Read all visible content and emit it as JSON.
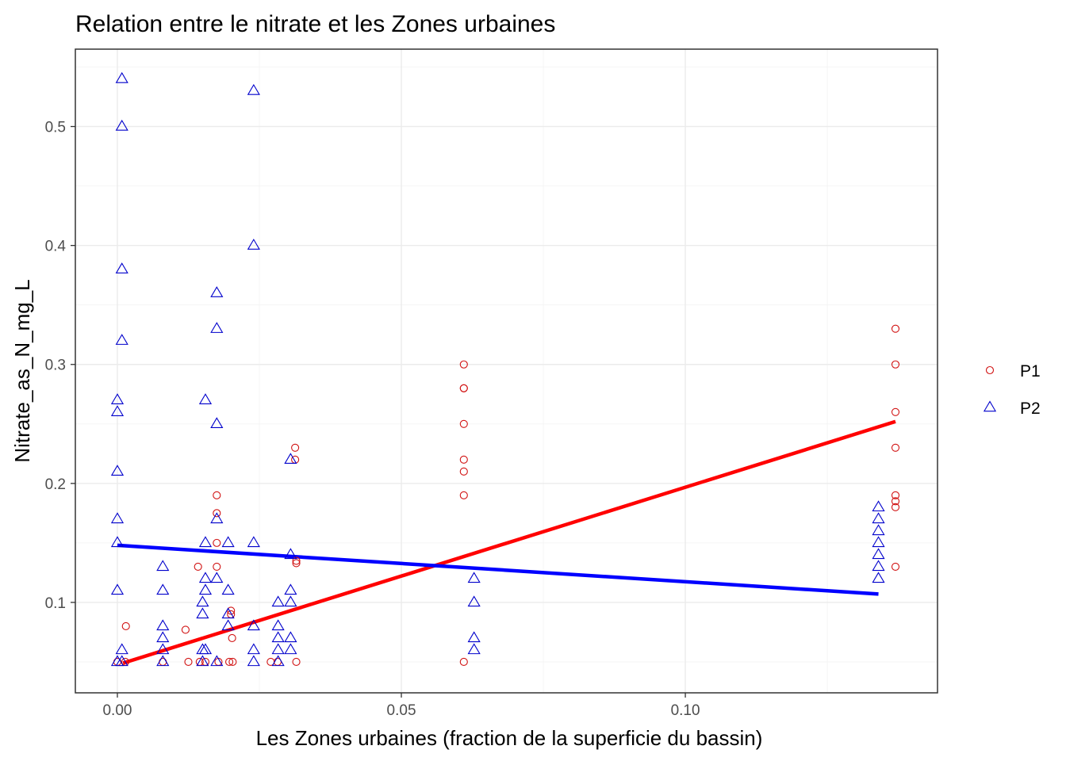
{
  "chart_data": {
    "type": "scatter",
    "title": "Relation entre le nitrate et les Zones urbaines",
    "xlabel": "Les Zones urbaines (fraction de la superficie du bassin)",
    "ylabel": "Nitrate_as_N_mg_L",
    "xlim": [
      -0.0074,
      0.1444
    ],
    "ylim": [
      0.024,
      0.565
    ],
    "x_ticks": [
      0.0,
      0.05,
      0.1
    ],
    "x_tick_labels": [
      "0.00",
      "0.05",
      "0.10"
    ],
    "y_ticks": [
      0.1,
      0.2,
      0.3,
      0.4,
      0.5
    ],
    "y_tick_labels": [
      "0.1",
      "0.2",
      "0.3",
      "0.4",
      "0.5"
    ],
    "grid": true,
    "legend_position": "right",
    "series": [
      {
        "name": "P1",
        "color": "#d11111",
        "marker": "circle",
        "points": [
          [
            0.0,
            0.05
          ],
          [
            0.0014,
            0.05
          ],
          [
            0.0015,
            0.08
          ],
          [
            0.008,
            0.05
          ],
          [
            0.012,
            0.077
          ],
          [
            0.0125,
            0.05
          ],
          [
            0.0142,
            0.13
          ],
          [
            0.0145,
            0.05
          ],
          [
            0.0155,
            0.05
          ],
          [
            0.0175,
            0.19
          ],
          [
            0.0175,
            0.175
          ],
          [
            0.0175,
            0.15
          ],
          [
            0.0175,
            0.13
          ],
          [
            0.0178,
            0.05
          ],
          [
            0.0197,
            0.05
          ],
          [
            0.02,
            0.093
          ],
          [
            0.02,
            0.09
          ],
          [
            0.0202,
            0.07
          ],
          [
            0.0203,
            0.05
          ],
          [
            0.027,
            0.05
          ],
          [
            0.0282,
            0.05
          ],
          [
            0.0313,
            0.23
          ],
          [
            0.0313,
            0.22
          ],
          [
            0.0315,
            0.135
          ],
          [
            0.0315,
            0.133
          ],
          [
            0.0315,
            0.05
          ],
          [
            0.061,
            0.3
          ],
          [
            0.061,
            0.28
          ],
          [
            0.061,
            0.28
          ],
          [
            0.061,
            0.25
          ],
          [
            0.061,
            0.22
          ],
          [
            0.061,
            0.21
          ],
          [
            0.061,
            0.19
          ],
          [
            0.061,
            0.05
          ],
          [
            0.137,
            0.33
          ],
          [
            0.137,
            0.3
          ],
          [
            0.137,
            0.26
          ],
          [
            0.137,
            0.23
          ],
          [
            0.137,
            0.19
          ],
          [
            0.137,
            0.185
          ],
          [
            0.137,
            0.18
          ],
          [
            0.137,
            0.13
          ]
        ],
        "fit": {
          "x": [
            0.001,
            0.137
          ],
          "y": [
            0.049,
            0.252
          ]
        }
      },
      {
        "name": "P2",
        "color": "#0000cc",
        "marker": "triangle",
        "points": [
          [
            0.0008,
            0.54
          ],
          [
            0.0008,
            0.5
          ],
          [
            0.0008,
            0.38
          ],
          [
            0.0008,
            0.32
          ],
          [
            0.0,
            0.27
          ],
          [
            0.0,
            0.26
          ],
          [
            0.0,
            0.21
          ],
          [
            0.0,
            0.17
          ],
          [
            0.0,
            0.15
          ],
          [
            0.0,
            0.11
          ],
          [
            0.0008,
            0.06
          ],
          [
            0.0,
            0.05
          ],
          [
            0.0008,
            0.05
          ],
          [
            0.008,
            0.13
          ],
          [
            0.008,
            0.11
          ],
          [
            0.008,
            0.08
          ],
          [
            0.008,
            0.07
          ],
          [
            0.008,
            0.06
          ],
          [
            0.008,
            0.05
          ],
          [
            0.0155,
            0.27
          ],
          [
            0.0155,
            0.15
          ],
          [
            0.0155,
            0.12
          ],
          [
            0.0155,
            0.11
          ],
          [
            0.015,
            0.1
          ],
          [
            0.015,
            0.09
          ],
          [
            0.015,
            0.06
          ],
          [
            0.0155,
            0.06
          ],
          [
            0.015,
            0.05
          ],
          [
            0.0175,
            0.36
          ],
          [
            0.0175,
            0.33
          ],
          [
            0.0175,
            0.25
          ],
          [
            0.0175,
            0.17
          ],
          [
            0.0175,
            0.12
          ],
          [
            0.0175,
            0.05
          ],
          [
            0.0195,
            0.15
          ],
          [
            0.0195,
            0.11
          ],
          [
            0.0195,
            0.09
          ],
          [
            0.0195,
            0.08
          ],
          [
            0.024,
            0.53
          ],
          [
            0.024,
            0.4
          ],
          [
            0.024,
            0.15
          ],
          [
            0.024,
            0.08
          ],
          [
            0.024,
            0.06
          ],
          [
            0.024,
            0.05
          ],
          [
            0.0283,
            0.1
          ],
          [
            0.0283,
            0.08
          ],
          [
            0.0283,
            0.07
          ],
          [
            0.0283,
            0.06
          ],
          [
            0.0283,
            0.05
          ],
          [
            0.0305,
            0.22
          ],
          [
            0.0305,
            0.14
          ],
          [
            0.0305,
            0.11
          ],
          [
            0.0305,
            0.1
          ],
          [
            0.0305,
            0.07
          ],
          [
            0.0305,
            0.06
          ],
          [
            0.0628,
            0.12
          ],
          [
            0.0628,
            0.1
          ],
          [
            0.0628,
            0.07
          ],
          [
            0.0628,
            0.06
          ],
          [
            0.134,
            0.18
          ],
          [
            0.134,
            0.17
          ],
          [
            0.134,
            0.16
          ],
          [
            0.134,
            0.15
          ],
          [
            0.134,
            0.14
          ],
          [
            0.134,
            0.13
          ],
          [
            0.134,
            0.12
          ]
        ],
        "fit": {
          "x": [
            0.0,
            0.134
          ],
          "y": [
            0.148,
            0.107
          ]
        }
      }
    ]
  }
}
